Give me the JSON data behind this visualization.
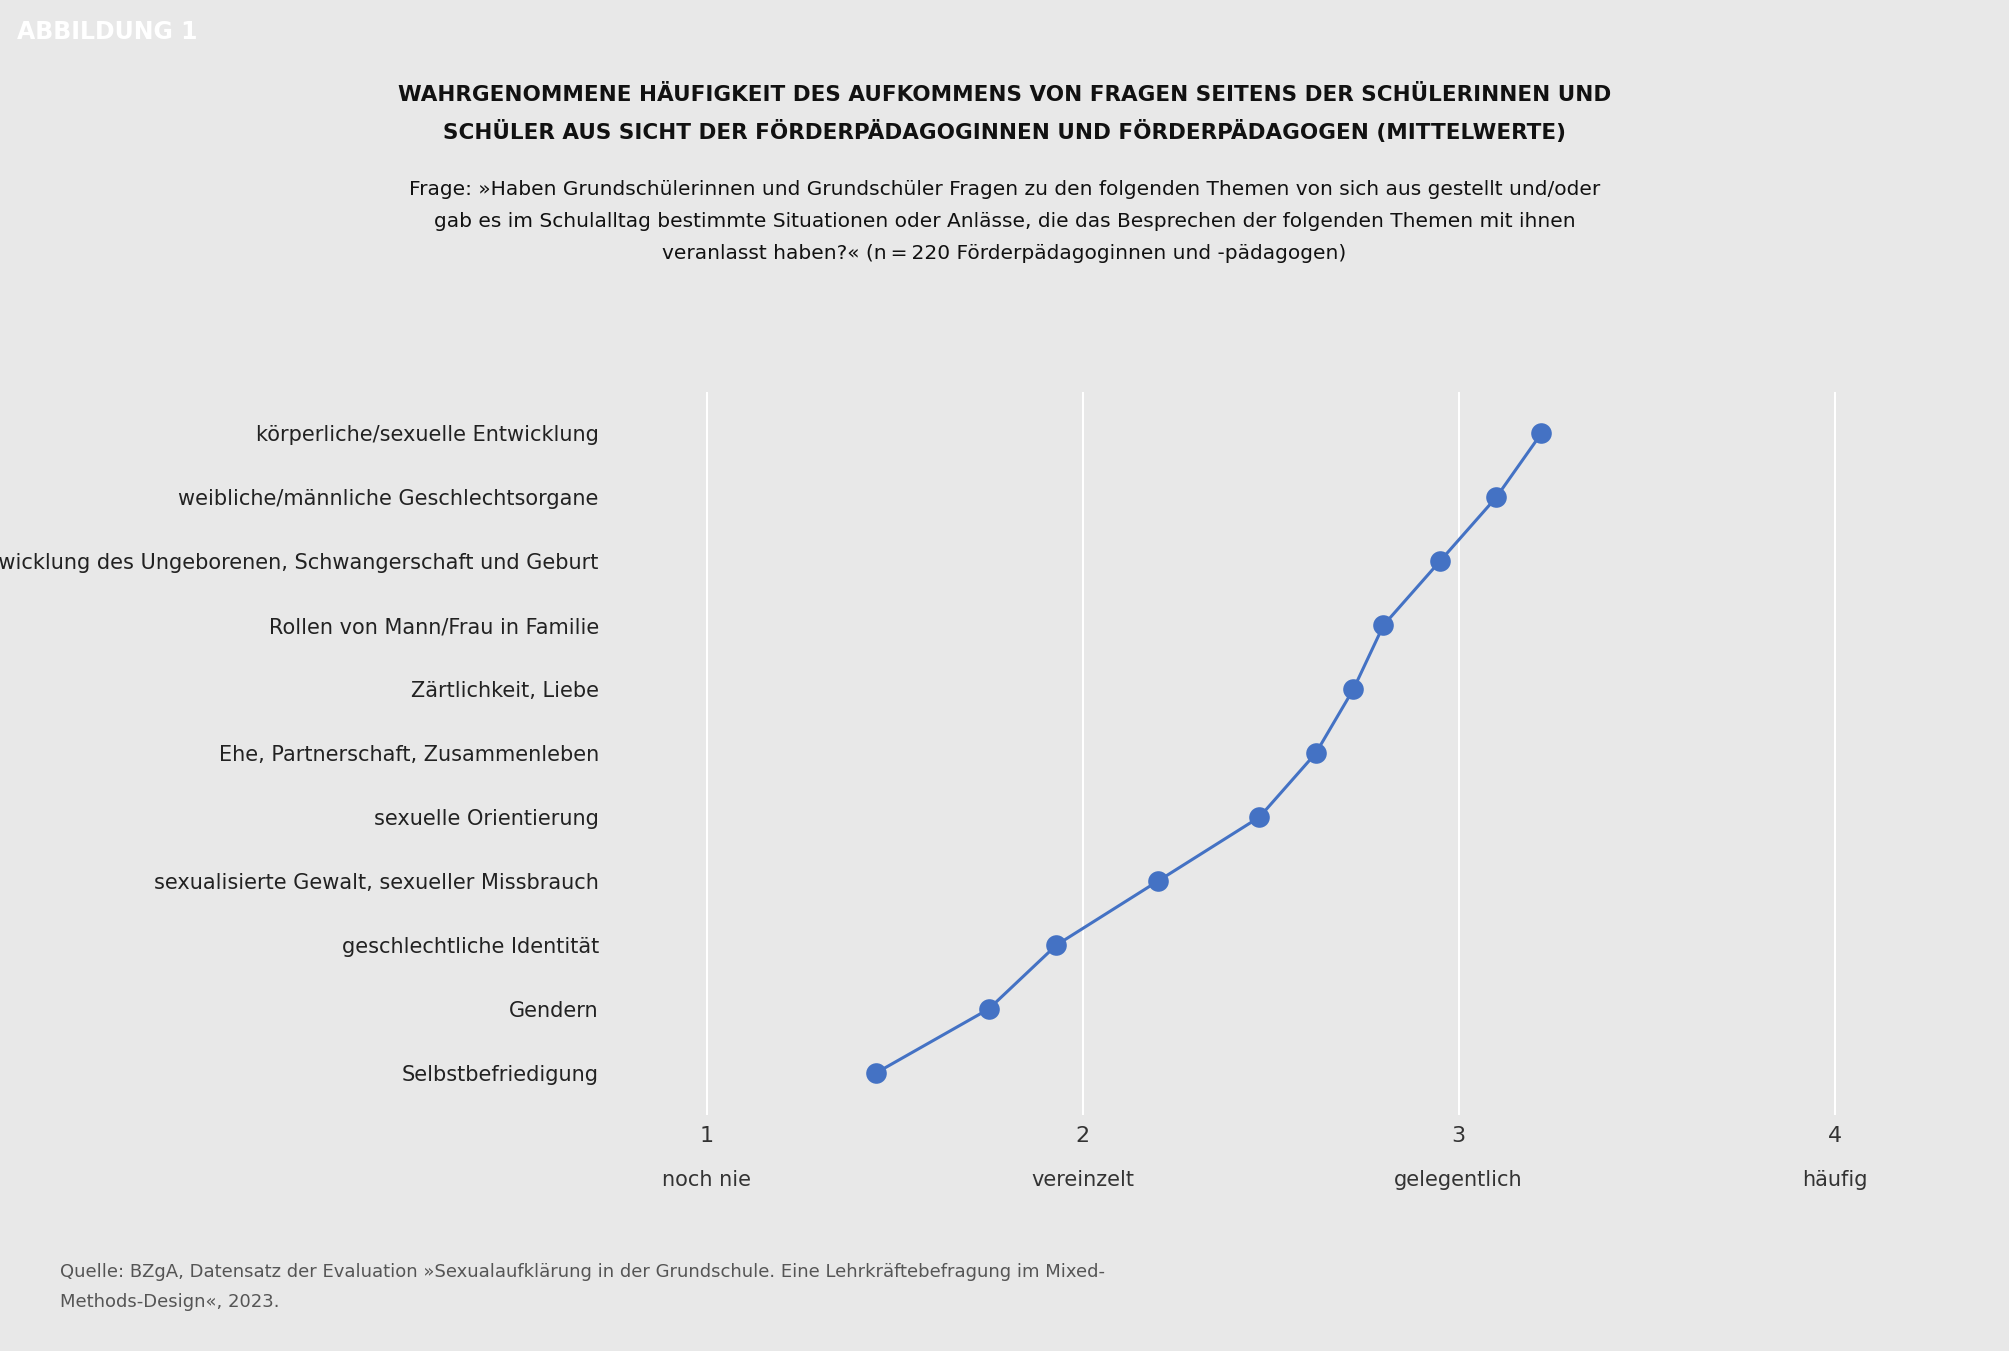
{
  "title_line1": "WAHRGENOMMENE HÄUFIGKEIT DES AUFKOMMENS VON FRAGEN SEITENS DER SCHÜLERINNEN UND",
  "title_line2": "SCHÜLER AUS SICHT DER FÖRDERPÄDAGOGINNEN UND FÖRDERPÄDAGOGEN (MITTELWERTE)",
  "subtitle_line1": "Frage: »Haben Grundschülerinnen und Grundschüler Fragen zu den folgenden Themen von sich aus gestellt und/oder",
  "subtitle_line2": "gab es im Schulalltag bestimmte Situationen oder Anlässe, die das Besprechen der folgenden Themen mit ihnen",
  "subtitle_line3": "veranlasst haben?« (n = 220 Förderpädagoginnen und -pädagogen)",
  "categories": [
    "körperliche/sexuelle Entwicklung",
    "weibliche/männliche Geschlechtsorgane",
    "Entwicklung des Ungeborenen, Schwangerschaft und Geburt",
    "Rollen von Mann/Frau in Familie",
    "Zärtlichkeit, Liebe",
    "Ehe, Partnerschaft, Zusammenleben",
    "sexuelle Orientierung",
    "sexualisierte Gewalt, sexueller Missbrauch",
    "geschlechtliche Identität",
    "Gendern",
    "Selbstbefriedigung"
  ],
  "values": [
    3.22,
    3.1,
    2.95,
    2.8,
    2.72,
    2.62,
    2.47,
    2.2,
    1.93,
    1.75,
    1.45
  ],
  "dot_color": "#4472C4",
  "line_color": "#4472C4",
  "background_color": "#E8E8E8",
  "plot_bg_color": "#E8E8E8",
  "xlabel_ticks": [
    1,
    2,
    3,
    4
  ],
  "xlabel_labels": [
    "noch nie",
    "vereinzelt",
    "gelegentlich",
    "häufig"
  ],
  "xlim": [
    0.75,
    4.25
  ],
  "source_text_line1": "Quelle: BZgA, Datensatz der Evaluation »Sexualaufklärung in der Grundschule. Eine Lehrkräftebefragung im Mixed-",
  "source_text_line2": "Methods-Design«, 2023.",
  "abbildung_label": "ABBILDUNG 1",
  "abbildung_bg": "#1a1a1a",
  "abbildung_fg": "#ffffff"
}
